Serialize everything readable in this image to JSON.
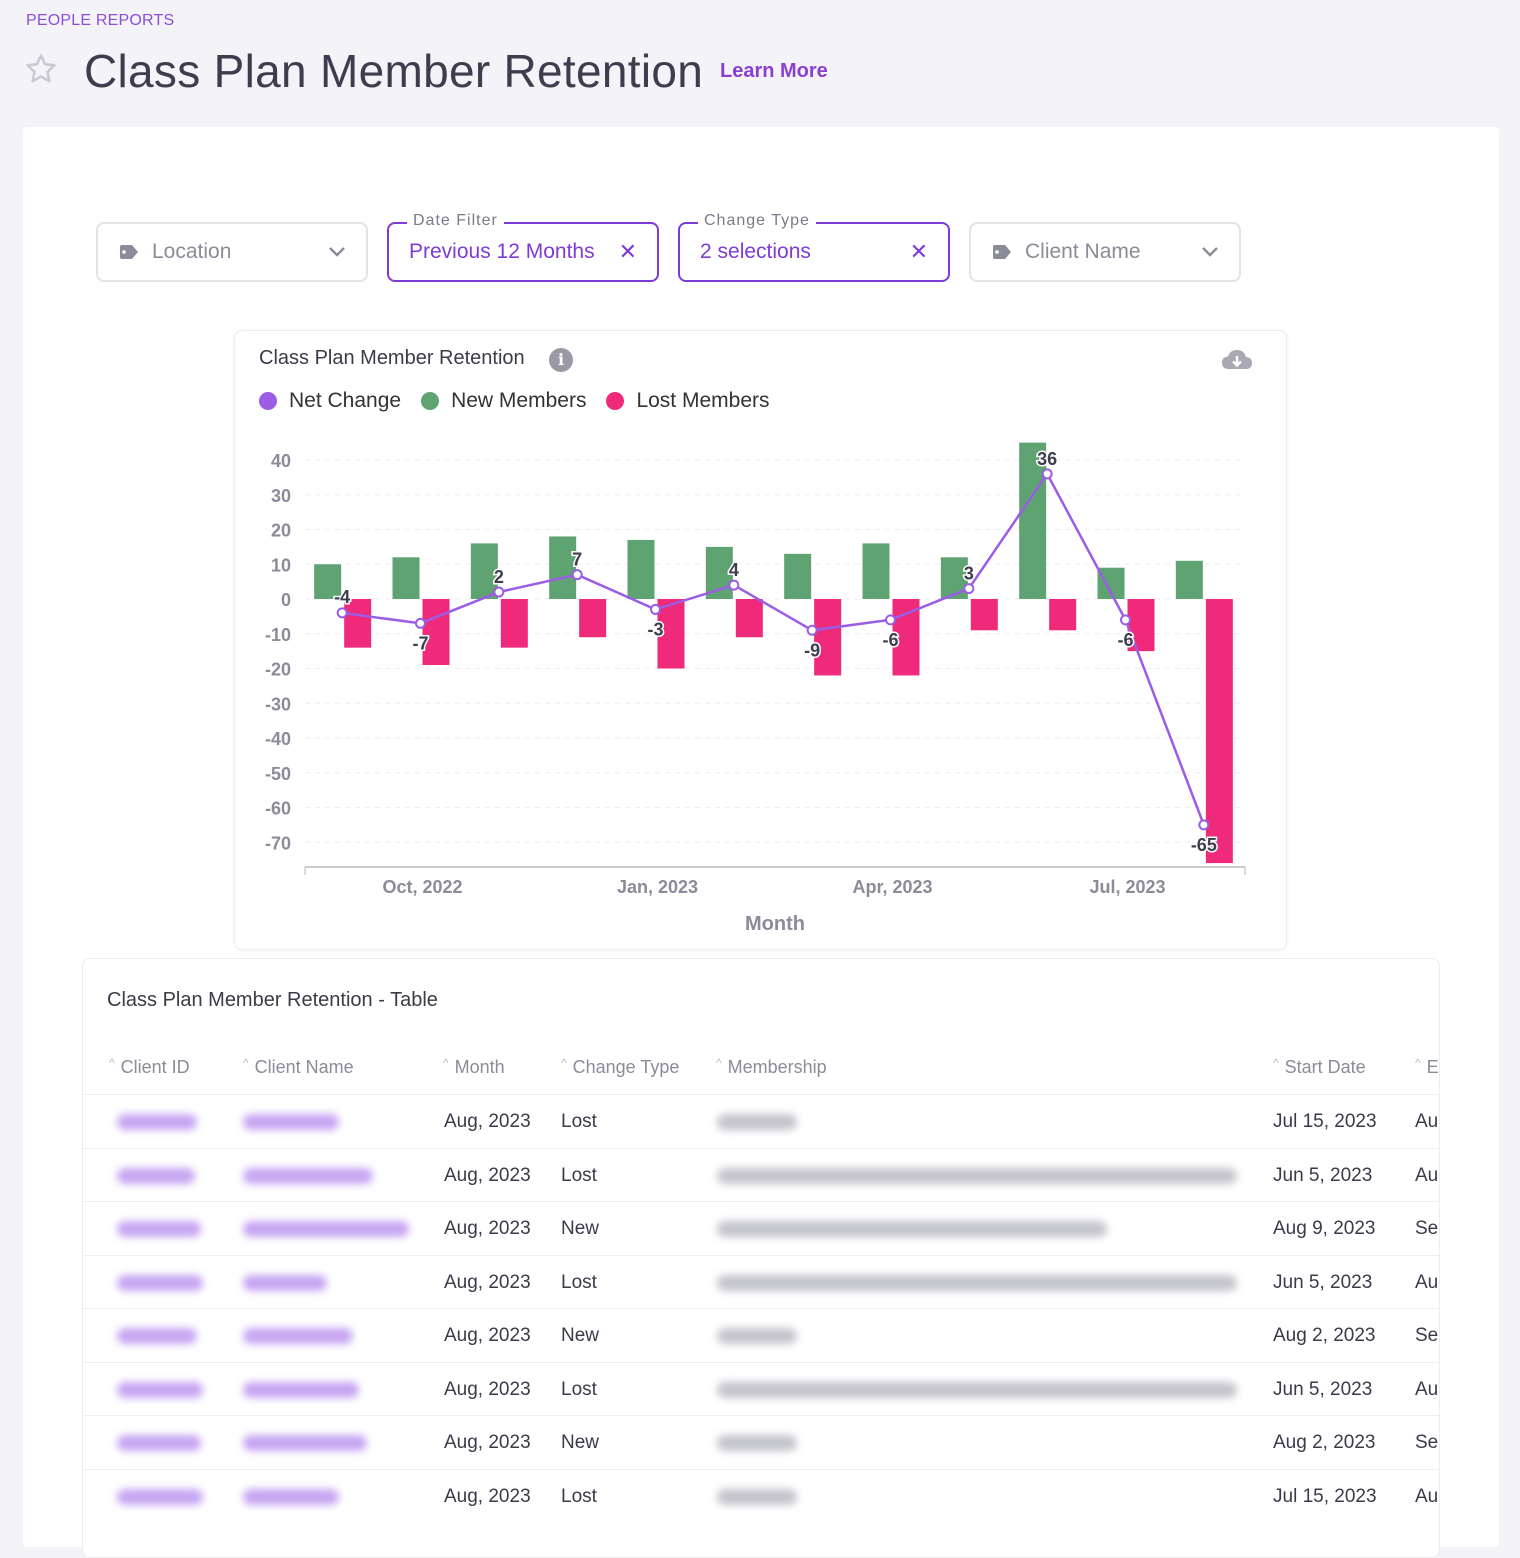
{
  "breadcrumb": "PEOPLE REPORTS",
  "page_title": "Class Plan Member Retention",
  "learn_more": "Learn More",
  "filters": [
    {
      "label": "",
      "value": "Location",
      "active": false
    },
    {
      "label": "Date Filter",
      "value": "Previous 12 Months",
      "active": true
    },
    {
      "label": "Change Type",
      "value": "2 selections",
      "active": true
    },
    {
      "label": "",
      "value": "Client Name",
      "active": false
    }
  ],
  "clear_symbol": "✕",
  "chart": {
    "title": "Class Plan Member Retention",
    "info_symbol": "i",
    "legend": [
      {
        "name": "Net Change",
        "color": "#9b5de5"
      },
      {
        "name": "New Members",
        "color": "#5fa373"
      },
      {
        "name": "Lost Members",
        "color": "#ef2a7a"
      }
    ]
  },
  "chart_data": {
    "type": "bar",
    "xlabel": "Month",
    "ylabel": "",
    "ylim": [
      -76,
      45
    ],
    "y_ticks": [
      40,
      30,
      20,
      10,
      0,
      -10,
      -20,
      -30,
      -40,
      -50,
      -60,
      -70
    ],
    "x_tick_labels": [
      "Oct, 2022",
      "Jan, 2023",
      "Apr, 2023",
      "Jul, 2023"
    ],
    "x_tick_months": [
      2,
      5,
      8,
      11
    ],
    "months": 12,
    "series": [
      {
        "name": "New Members",
        "color": "#5fa373",
        "values": [
          10,
          12,
          16,
          18,
          17,
          15,
          13,
          16,
          12,
          45,
          9,
          11
        ]
      },
      {
        "name": "Lost Members",
        "color": "#ef2a7a",
        "values": [
          -14,
          -19,
          -14,
          -11,
          -20,
          -11,
          -22,
          -22,
          -9,
          -9,
          -15,
          -76
        ]
      },
      {
        "name": "Net Change",
        "color": "#9b5de5",
        "type": "line",
        "values": [
          -4,
          -7,
          2,
          7,
          -3,
          4,
          -9,
          -6,
          3,
          36,
          -6,
          -65
        ]
      }
    ]
  },
  "table": {
    "title": "Class Plan Member Retention - Table",
    "columns": [
      "Client ID",
      "Client Name",
      "Month",
      "Change Type",
      "Membership",
      "Start Date",
      "E"
    ],
    "rows": [
      {
        "month": "Aug, 2023",
        "change": "Lost",
        "start": "Jul 15, 2023",
        "end": "Au"
      },
      {
        "month": "Aug, 2023",
        "change": "Lost",
        "start": "Jun 5, 2023",
        "end": "Au"
      },
      {
        "month": "Aug, 2023",
        "change": "New",
        "start": "Aug 9, 2023",
        "end": "Sep"
      },
      {
        "month": "Aug, 2023",
        "change": "Lost",
        "start": "Jun 5, 2023",
        "end": "Au"
      },
      {
        "month": "Aug, 2023",
        "change": "New",
        "start": "Aug 2, 2023",
        "end": "Sep"
      },
      {
        "month": "Aug, 2023",
        "change": "Lost",
        "start": "Jun 5, 2023",
        "end": "Au"
      },
      {
        "month": "Aug, 2023",
        "change": "New",
        "start": "Aug 2, 2023",
        "end": "Sep"
      },
      {
        "month": "Aug, 2023",
        "change": "Lost",
        "start": "Jul 15, 2023",
        "end": "Au"
      }
    ]
  }
}
